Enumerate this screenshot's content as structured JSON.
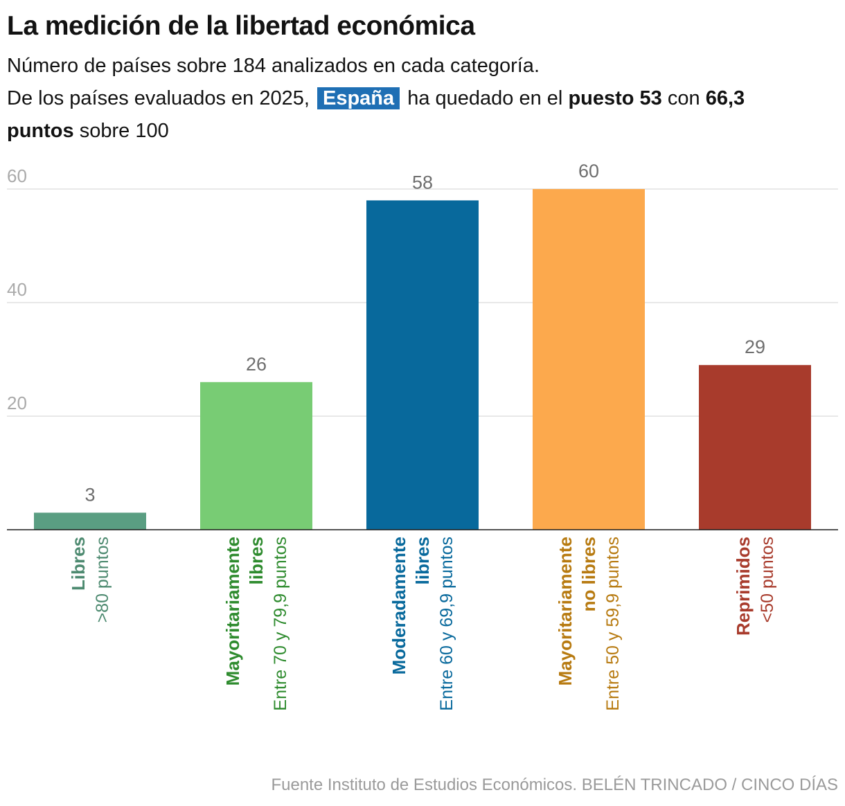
{
  "header": {
    "title": "La medición de la libertad económica",
    "subtitle_line1": "Número de países sobre 184 analizados en cada categoría.",
    "subtitle_part1": "De los países evaluados en 2025,",
    "highlight": "España",
    "subtitle_part2": "ha quedado en el",
    "rank": "puesto 53",
    "subtitle_part3": "con",
    "score": "66,3",
    "score_unit": "puntos",
    "subtitle_part4": "sobre 100"
  },
  "chart_data": {
    "type": "bar",
    "title": "La medición de la libertad económica",
    "xlabel": "",
    "ylabel": "",
    "ylim": [
      0,
      60
    ],
    "yticks": [
      20,
      40,
      60
    ],
    "grid": true,
    "categories": [
      {
        "name": "Libres",
        "range": ">80 puntos",
        "value": 3,
        "color": "#5a9e82",
        "text_color": "#4d8a70"
      },
      {
        "name": "Mayoritariamente libres",
        "name_lines": [
          "Mayoritariamente",
          "libres"
        ],
        "range": "Entre 70 y 79,9 puntos",
        "value": 26,
        "color": "#78cc74",
        "text_color": "#2e8b2e"
      },
      {
        "name": "Moderadamente libres",
        "name_lines": [
          "Moderadamente",
          "libres"
        ],
        "range": "Entre 60 y 69,9 puntos",
        "value": 58,
        "color": "#08699c",
        "text_color": "#08699c"
      },
      {
        "name": "Mayoritariamente no libres",
        "name_lines": [
          "Mayoritariamente",
          "no libres"
        ],
        "range": "Entre 50 y 59,9 puntos",
        "value": 60,
        "color": "#fca94d",
        "text_color": "#b77a10"
      },
      {
        "name": "Reprimidos",
        "range": "<50 puntos",
        "value": 29,
        "color": "#a83b2c",
        "text_color": "#a83b2c"
      }
    ]
  },
  "source": "Fuente Instituto de Estudios Económicos. BELÉN TRINCADO / CINCO DÍAS"
}
